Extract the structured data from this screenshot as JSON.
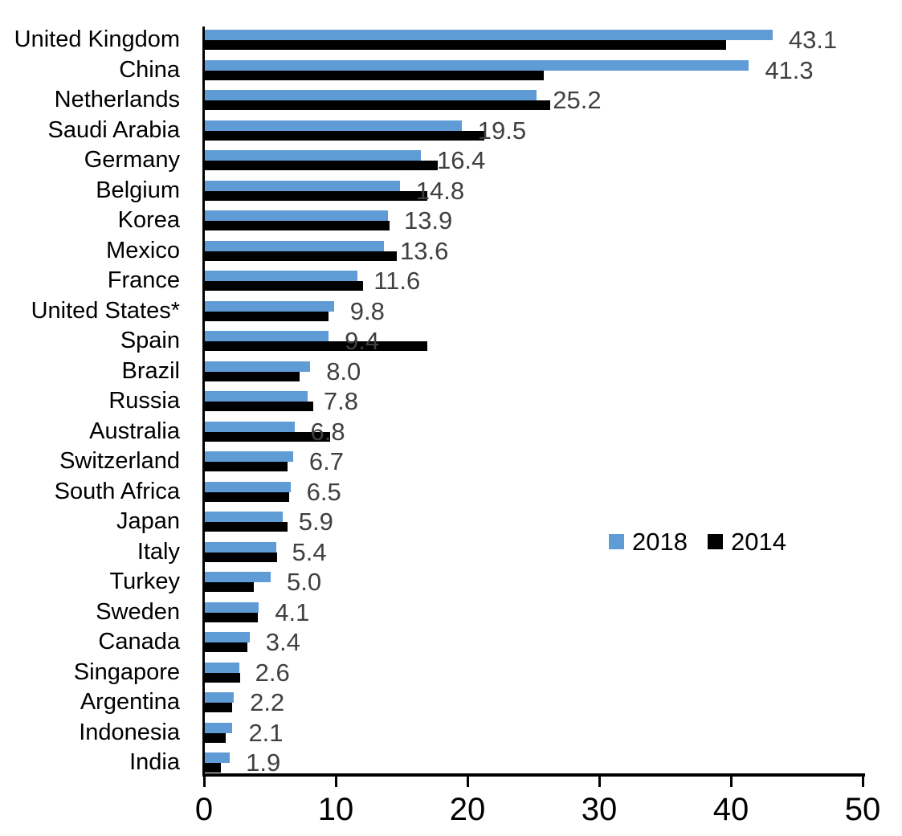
{
  "chart_data": {
    "type": "bar",
    "orientation": "horizontal",
    "title": "",
    "xlabel": "",
    "ylabel": "",
    "xlim": [
      0,
      50
    ],
    "xticks": [
      0,
      10,
      20,
      30,
      40,
      50
    ],
    "xtick_labels": [
      "0",
      "10",
      "20",
      "30",
      "40",
      "50"
    ],
    "grid": false,
    "legend_position": "middle-right",
    "categories": [
      "United Kingdom",
      "China",
      "Netherlands",
      "Saudi Arabia",
      "Germany",
      "Belgium",
      "Korea",
      "Mexico",
      "France",
      "United States*",
      "Spain",
      "Brazil",
      "Russia",
      "Australia",
      "Switzerland",
      "South Africa",
      "Japan",
      "Italy",
      "Turkey",
      "Sweden",
      "Canada",
      "Singapore",
      "Argentina",
      "Indonesia",
      "India"
    ],
    "series": [
      {
        "name": "2018",
        "color": "#5F9BD5",
        "values": [
          43.1,
          41.3,
          25.2,
          19.5,
          16.4,
          14.8,
          13.9,
          13.6,
          11.6,
          9.8,
          9.4,
          8.0,
          7.8,
          6.8,
          6.7,
          6.5,
          5.9,
          5.4,
          5.0,
          4.1,
          3.4,
          2.6,
          2.2,
          2.1,
          1.9
        ]
      },
      {
        "name": "2014",
        "color": "#000000",
        "values": [
          39.6,
          25.7,
          26.2,
          21.2,
          17.7,
          16.9,
          14.0,
          14.6,
          12.0,
          9.4,
          16.9,
          7.2,
          8.2,
          9.5,
          6.3,
          6.4,
          6.3,
          5.5,
          3.7,
          4.0,
          3.2,
          2.7,
          2.1,
          1.6,
          1.2
        ]
      }
    ],
    "data_labels": {
      "series": "2018",
      "color": "#404040",
      "values": [
        "43.1",
        "41.3",
        "25.2",
        "19.5",
        "16.4",
        "14.8",
        "13.9",
        "13.6",
        "11.6",
        "9.8",
        "9.4",
        "8.0",
        "7.8",
        "6.8",
        "6.7",
        "6.5",
        "5.9",
        "5.4",
        "5.0",
        "4.1",
        "3.4",
        "2.6",
        "2.2",
        "2.1",
        "1.9"
      ]
    },
    "axis_color": "#000000"
  },
  "legend": {
    "items": [
      {
        "label": "2018",
        "color": "#5F9BD5"
      },
      {
        "label": "2014",
        "color": "#000000"
      }
    ]
  }
}
